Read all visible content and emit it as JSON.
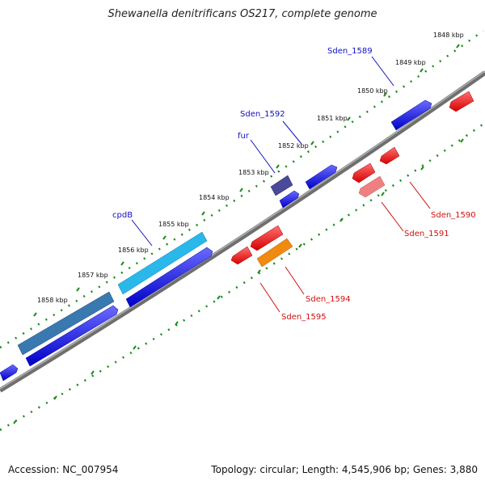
{
  "title": "Shewanella denitrificans OS217, complete genome",
  "footer": {
    "accession": "Accession: NC_007954",
    "summary": "Topology: circular; Length: 4,545,906 bp; Genes: 3,880"
  },
  "ticks": [
    "1848 kbp",
    "1849 kbp",
    "1850 kbp",
    "1851 kbp",
    "1852 kbp",
    "1853 kbp",
    "1854 kbp",
    "1855 kbp",
    "1856 kbp",
    "1857 kbp",
    "1858 kbp"
  ],
  "gene_labels": {
    "sden_1589": "Sden_1589",
    "sden_1592": "Sden_1592",
    "fur": "fur",
    "cpdB": "cpdB",
    "sden_1590": "Sden_1590",
    "sden_1591": "Sden_1591",
    "sden_1594": "Sden_1594",
    "sden_1595": "Sden_1595"
  },
  "colors": {
    "forward_gene": "#1010e0",
    "reverse_gene": "#ee1010",
    "labeled_forward": "#2aa8e0",
    "labeled_reverse": "#f08a10",
    "tick_marks": "#1a8a1a",
    "backbone": "#808080"
  }
}
